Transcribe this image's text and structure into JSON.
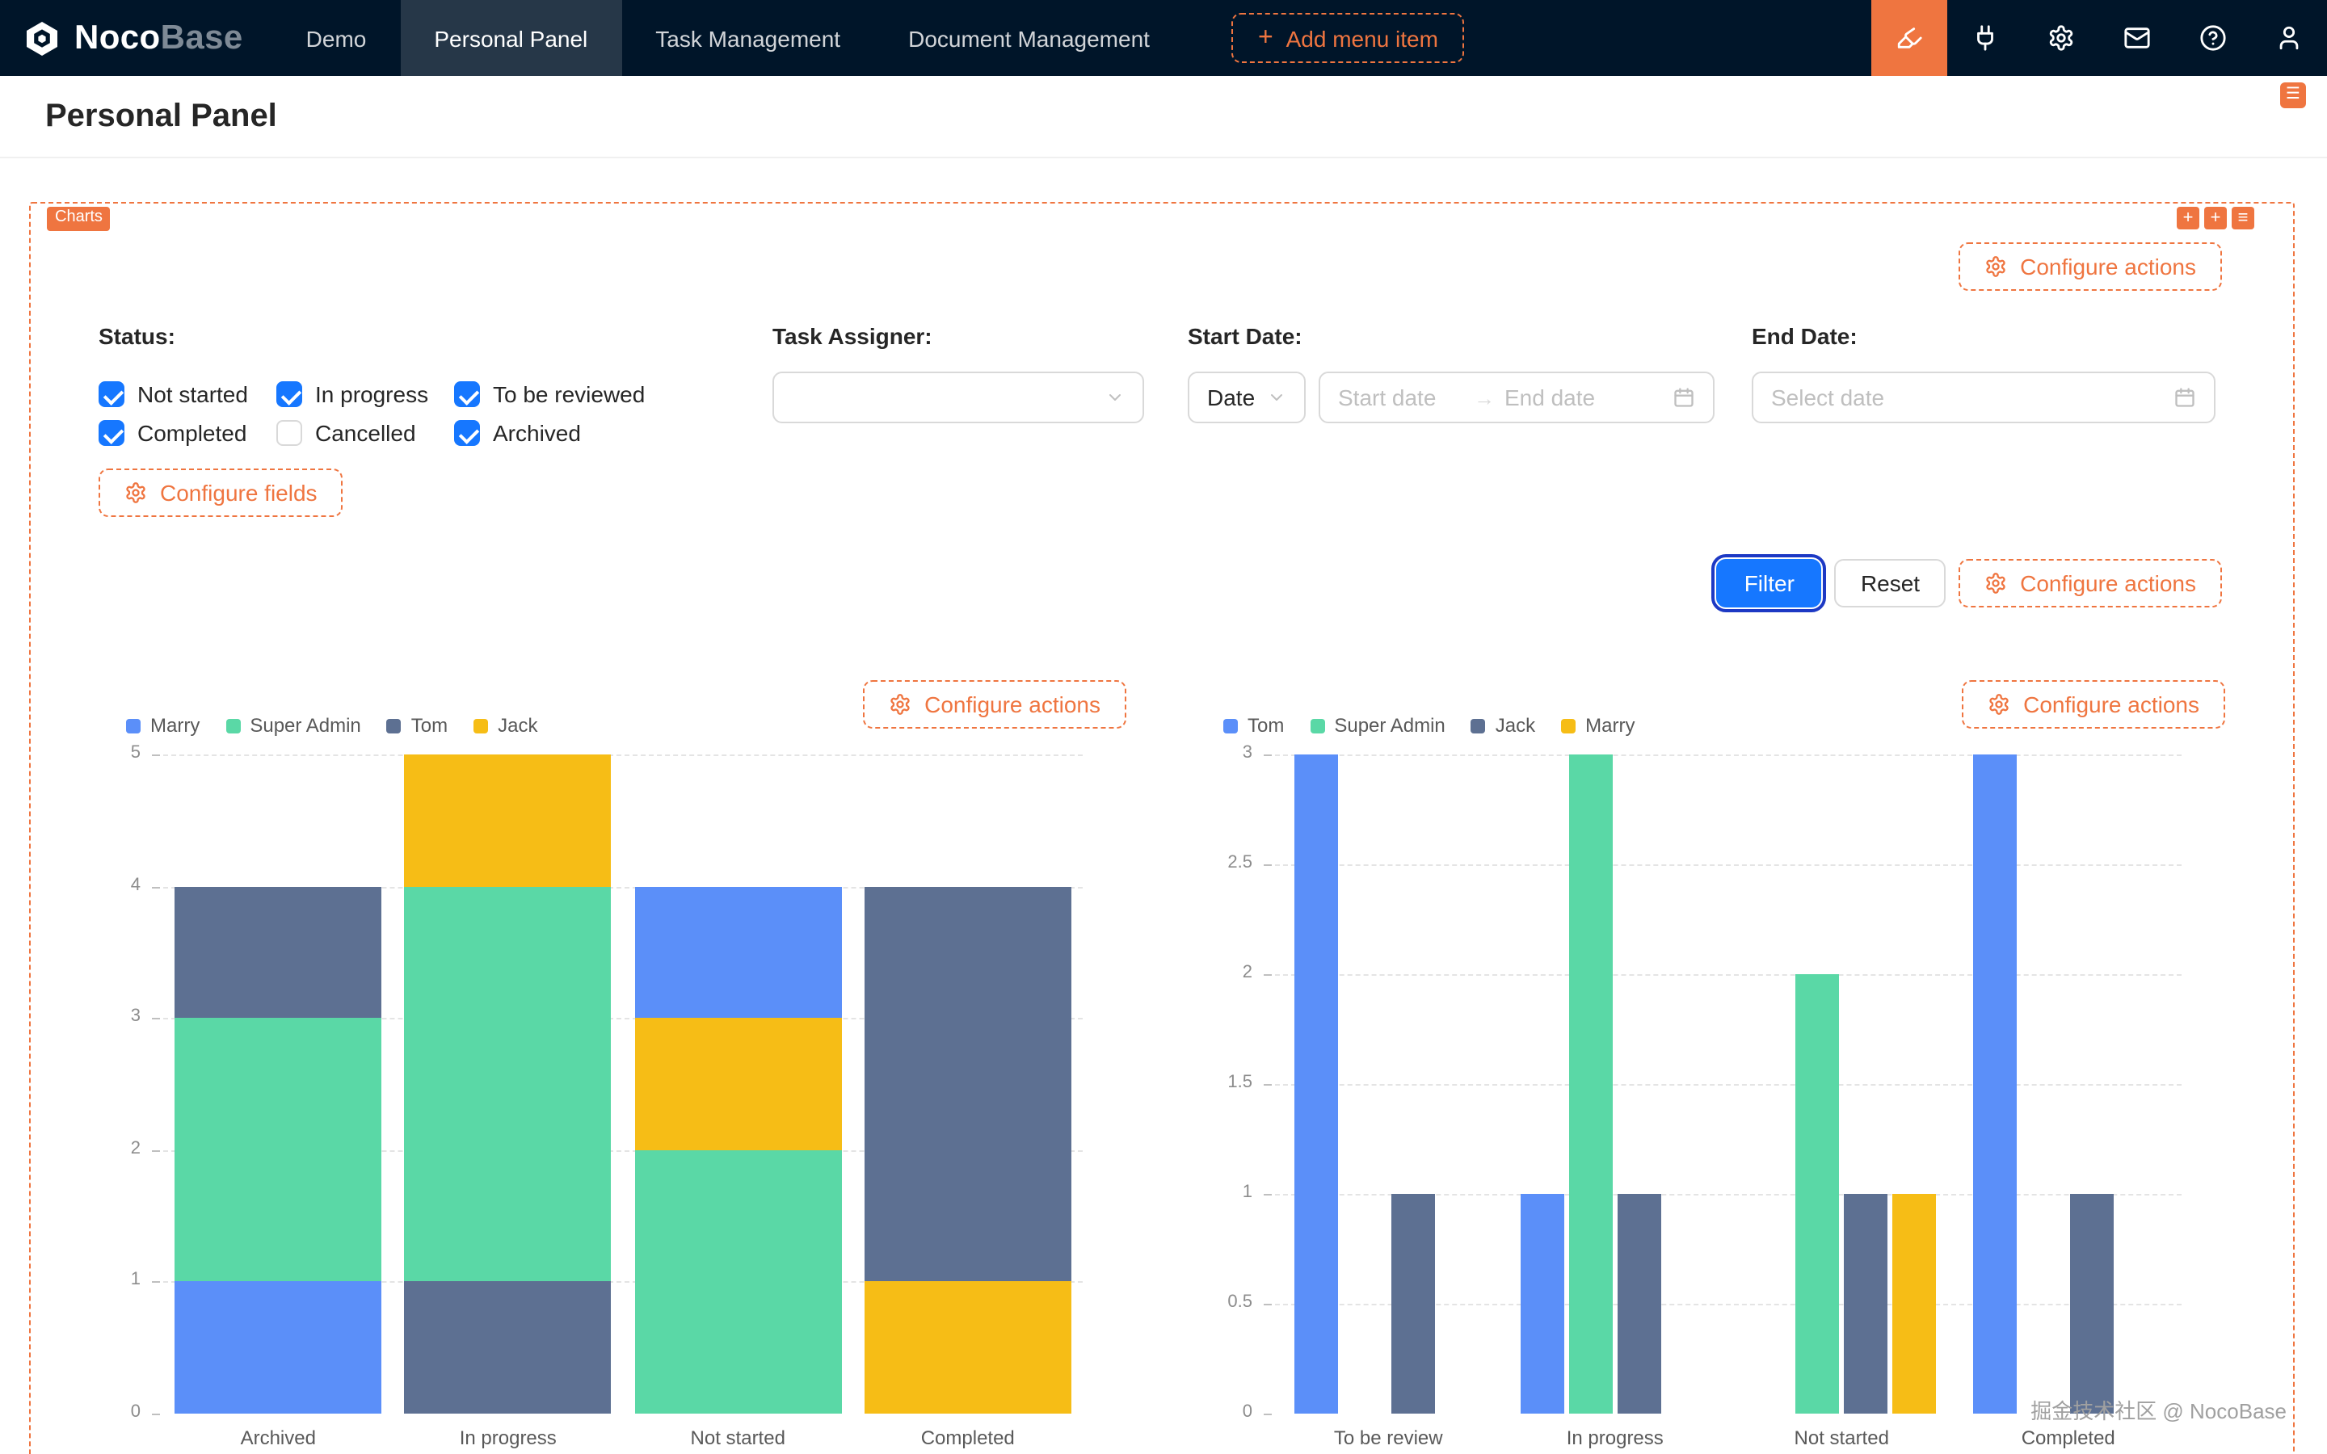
{
  "colors": {
    "accent_orange": "#EF7540",
    "primary_blue": "#1677FF",
    "navbar_bg": "#001529",
    "chart_blue": "#5B8FF9",
    "chart_green": "#5AD8A6",
    "chart_slate": "#5D7092",
    "chart_yellow": "#F6BD16"
  },
  "navbar": {
    "brand": {
      "primary": "Noco",
      "secondary": "Base"
    },
    "items": [
      {
        "label": "Demo",
        "active": false
      },
      {
        "label": "Personal Panel",
        "active": true
      },
      {
        "label": "Task Management",
        "active": false
      },
      {
        "label": "Document Management",
        "active": false
      }
    ],
    "add_menu_item": "Add menu item"
  },
  "page": {
    "title": "Personal Panel"
  },
  "block": {
    "tag": "Charts",
    "configure_actions": "Configure actions",
    "configure_fields": "Configure fields"
  },
  "filters": {
    "status": {
      "label": "Status:",
      "options": [
        {
          "label": "Not started",
          "checked": true
        },
        {
          "label": "In progress",
          "checked": true
        },
        {
          "label": "To be reviewed",
          "checked": true
        },
        {
          "label": "Completed",
          "checked": true
        },
        {
          "label": "Cancelled",
          "checked": false
        },
        {
          "label": "Archived",
          "checked": true
        }
      ]
    },
    "task_assigner": {
      "label": "Task Assigner:",
      "value": ""
    },
    "start_date": {
      "label": "Start Date:",
      "mode": "Date",
      "start_placeholder": "Start date",
      "end_placeholder": "End date"
    },
    "end_date": {
      "label": "End Date:",
      "placeholder": "Select date"
    }
  },
  "actions": {
    "filter": "Filter",
    "reset": "Reset"
  },
  "watermark": "掘金技术社区 @ NocoBase",
  "chart_data": [
    {
      "type": "bar",
      "variant": "stacked",
      "title": "",
      "categories": [
        "Archived",
        "In progress",
        "Not started",
        "Completed"
      ],
      "legend": [
        {
          "name": "Marry",
          "color": "#5B8FF9"
        },
        {
          "name": "Super Admin",
          "color": "#5AD8A6"
        },
        {
          "name": "Tom",
          "color": "#5D7092"
        },
        {
          "name": "Jack",
          "color": "#F6BD16"
        }
      ],
      "stacks": [
        [
          {
            "name": "Marry",
            "value": 1
          },
          {
            "name": "Super Admin",
            "value": 2
          },
          {
            "name": "Tom",
            "value": 1
          }
        ],
        [
          {
            "name": "Tom",
            "value": 1
          },
          {
            "name": "Super Admin",
            "value": 3
          },
          {
            "name": "Jack",
            "value": 1
          }
        ],
        [
          {
            "name": "Super Admin",
            "value": 2
          },
          {
            "name": "Jack",
            "value": 1
          },
          {
            "name": "Marry",
            "value": 1
          }
        ],
        [
          {
            "name": "Jack",
            "value": 1
          },
          {
            "name": "Tom",
            "value": 3
          }
        ]
      ],
      "ylim": [
        0,
        5
      ],
      "yticks": [
        0,
        1,
        2,
        3,
        4,
        5
      ],
      "grid": true,
      "legend_position": "top-left"
    },
    {
      "type": "bar",
      "variant": "grouped",
      "title": "",
      "categories": [
        "To be review",
        "In progress",
        "Not started",
        "Completed"
      ],
      "legend": [
        {
          "name": "Tom",
          "color": "#5B8FF9"
        },
        {
          "name": "Super Admin",
          "color": "#5AD8A6"
        },
        {
          "name": "Jack",
          "color": "#5D7092"
        },
        {
          "name": "Marry",
          "color": "#F6BD16"
        }
      ],
      "series": [
        {
          "name": "Tom",
          "color": "#5B8FF9",
          "values": [
            3,
            1,
            0,
            3
          ]
        },
        {
          "name": "Super Admin",
          "color": "#5AD8A6",
          "values": [
            0,
            3,
            2,
            0
          ]
        },
        {
          "name": "Jack",
          "color": "#5D7092",
          "values": [
            1,
            1,
            1,
            1
          ]
        },
        {
          "name": "Marry",
          "color": "#F6BD16",
          "values": [
            0,
            0,
            1,
            0
          ]
        }
      ],
      "ylim": [
        0,
        3
      ],
      "yticks": [
        0,
        0.5,
        1,
        1.5,
        2,
        2.5,
        3
      ],
      "grid": true,
      "legend_position": "top-left"
    }
  ]
}
